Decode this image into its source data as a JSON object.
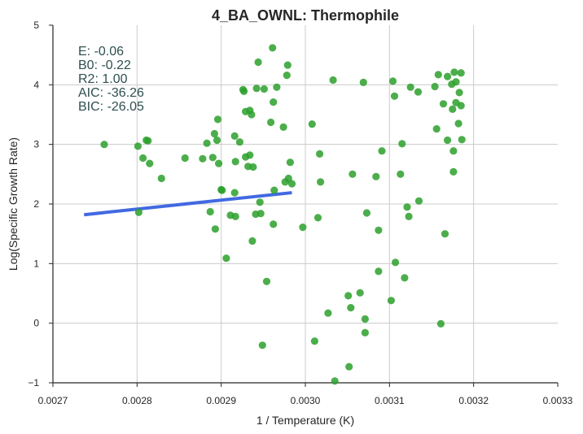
{
  "chart_data": {
    "type": "scatter",
    "title": "4_BA_OWNL: Thermophile",
    "xlabel": "1 / Temperature (K)",
    "ylabel": "Log(Specific Growth Rate)",
    "xlim": [
      0.0027,
      0.0033
    ],
    "ylim": [
      -1,
      5
    ],
    "xticks": [
      0.0027,
      0.0028,
      0.0029,
      0.003,
      0.0031,
      0.0032,
      0.0033
    ],
    "xtick_labels": [
      "0.0027",
      "0.0028",
      "0.0029",
      "0.0030",
      "0.0031",
      "0.0032",
      "0.0033"
    ],
    "yticks": [
      -1,
      0,
      1,
      2,
      3,
      4,
      5
    ],
    "ytick_labels": [
      "−1",
      "0",
      "1",
      "2",
      "3",
      "4",
      "5"
    ],
    "grid": true,
    "point_color": "#2ca02c",
    "line_color": "#4169e1",
    "stats": [
      "E:  -0.06",
      "B0:  -0.22",
      "R2:  1.00",
      "AIC: -36.26",
      "BIC: -26.05"
    ],
    "fit_line": {
      "x": [
        0.002737,
        0.002984
      ],
      "y": [
        1.82,
        2.19
      ]
    },
    "points": [
      {
        "x": 0.002761,
        "y": 3.0
      },
      {
        "x": 0.002801,
        "y": 2.97
      },
      {
        "x": 0.002802,
        "y": 1.86
      },
      {
        "x": 0.002807,
        "y": 2.77
      },
      {
        "x": 0.002811,
        "y": 3.07
      },
      {
        "x": 0.002813,
        "y": 3.06
      },
      {
        "x": 0.002815,
        "y": 2.68
      },
      {
        "x": 0.002829,
        "y": 2.43
      },
      {
        "x": 0.002857,
        "y": 2.77
      },
      {
        "x": 0.002878,
        "y": 2.76
      },
      {
        "x": 0.002883,
        "y": 3.02
      },
      {
        "x": 0.002887,
        "y": 1.87
      },
      {
        "x": 0.00289,
        "y": 2.78
      },
      {
        "x": 0.002892,
        "y": 3.18
      },
      {
        "x": 0.002893,
        "y": 1.58
      },
      {
        "x": 0.002895,
        "y": 3.07
      },
      {
        "x": 0.002896,
        "y": 3.42
      },
      {
        "x": 0.002897,
        "y": 2.68
      },
      {
        "x": 0.0029,
        "y": 2.24
      },
      {
        "x": 0.002901,
        "y": 2.23
      },
      {
        "x": 0.002906,
        "y": 1.09
      },
      {
        "x": 0.002911,
        "y": 1.81
      },
      {
        "x": 0.002916,
        "y": 2.19
      },
      {
        "x": 0.002916,
        "y": 3.14
      },
      {
        "x": 0.002917,
        "y": 1.79
      },
      {
        "x": 0.002917,
        "y": 2.71
      },
      {
        "x": 0.002922,
        "y": 3.04
      },
      {
        "x": 0.002926,
        "y": 3.92
      },
      {
        "x": 0.002927,
        "y": 3.89
      },
      {
        "x": 0.002929,
        "y": 2.79
      },
      {
        "x": 0.002929,
        "y": 3.55
      },
      {
        "x": 0.002932,
        "y": 2.63
      },
      {
        "x": 0.002934,
        "y": 2.82
      },
      {
        "x": 0.002934,
        "y": 3.57
      },
      {
        "x": 0.002936,
        "y": 3.5
      },
      {
        "x": 0.002937,
        "y": 1.38
      },
      {
        "x": 0.002938,
        "y": 2.62
      },
      {
        "x": 0.002941,
        "y": 1.83
      },
      {
        "x": 0.002942,
        "y": 3.94
      },
      {
        "x": 0.002944,
        "y": 4.38
      },
      {
        "x": 0.002946,
        "y": 2.03
      },
      {
        "x": 0.002947,
        "y": 1.84
      },
      {
        "x": 0.002949,
        "y": -0.37
      },
      {
        "x": 0.002951,
        "y": 3.93
      },
      {
        "x": 0.002954,
        "y": 0.7
      },
      {
        "x": 0.002959,
        "y": 3.37
      },
      {
        "x": 0.002961,
        "y": 4.62
      },
      {
        "x": 0.002962,
        "y": 1.66
      },
      {
        "x": 0.002962,
        "y": 3.71
      },
      {
        "x": 0.002963,
        "y": 2.23
      },
      {
        "x": 0.002966,
        "y": 3.96
      },
      {
        "x": 0.002974,
        "y": 3.29
      },
      {
        "x": 0.002976,
        "y": 2.37
      },
      {
        "x": 0.002978,
        "y": 4.16
      },
      {
        "x": 0.002979,
        "y": 4.33
      },
      {
        "x": 0.00298,
        "y": 2.43
      },
      {
        "x": 0.002982,
        "y": 2.7
      },
      {
        "x": 0.002984,
        "y": 2.34
      },
      {
        "x": 0.002997,
        "y": 1.61
      },
      {
        "x": 0.003008,
        "y": 3.34
      },
      {
        "x": 0.003011,
        "y": -0.3
      },
      {
        "x": 0.003015,
        "y": 1.77
      },
      {
        "x": 0.003017,
        "y": 2.84
      },
      {
        "x": 0.003018,
        "y": 2.37
      },
      {
        "x": 0.003027,
        "y": 0.17
      },
      {
        "x": 0.003033,
        "y": 4.08
      },
      {
        "x": 0.003035,
        "y": -0.97
      },
      {
        "x": 0.003051,
        "y": 0.46
      },
      {
        "x": 0.003052,
        "y": -0.73
      },
      {
        "x": 0.003054,
        "y": 0.26
      },
      {
        "x": 0.003056,
        "y": 2.5
      },
      {
        "x": 0.003065,
        "y": 0.51
      },
      {
        "x": 0.003069,
        "y": 4.04
      },
      {
        "x": 0.003071,
        "y": 0.07
      },
      {
        "x": 0.003071,
        "y": -0.16
      },
      {
        "x": 0.003073,
        "y": 1.85
      },
      {
        "x": 0.003084,
        "y": 2.46
      },
      {
        "x": 0.003087,
        "y": 0.87
      },
      {
        "x": 0.003087,
        "y": 1.56
      },
      {
        "x": 0.003091,
        "y": 2.89
      },
      {
        "x": 0.003102,
        "y": 0.38
      },
      {
        "x": 0.003104,
        "y": 4.06
      },
      {
        "x": 0.003106,
        "y": 3.81
      },
      {
        "x": 0.003107,
        "y": 1.02
      },
      {
        "x": 0.003113,
        "y": 2.5
      },
      {
        "x": 0.003115,
        "y": 3.01
      },
      {
        "x": 0.003118,
        "y": 0.76
      },
      {
        "x": 0.003121,
        "y": 1.95
      },
      {
        "x": 0.003123,
        "y": 1.79
      },
      {
        "x": 0.003125,
        "y": 3.96
      },
      {
        "x": 0.003134,
        "y": 3.88
      },
      {
        "x": 0.003135,
        "y": 2.05
      },
      {
        "x": 0.003154,
        "y": 3.97
      },
      {
        "x": 0.003156,
        "y": 3.26
      },
      {
        "x": 0.003158,
        "y": 4.17
      },
      {
        "x": 0.003161,
        "y": -0.01
      },
      {
        "x": 0.003164,
        "y": 3.68
      },
      {
        "x": 0.003166,
        "y": 1.5
      },
      {
        "x": 0.003169,
        "y": 3.07
      },
      {
        "x": 0.003169,
        "y": 4.14
      },
      {
        "x": 0.003174,
        "y": 4.01
      },
      {
        "x": 0.003175,
        "y": 3.59
      },
      {
        "x": 0.003176,
        "y": 2.89
      },
      {
        "x": 0.003176,
        "y": 2.54
      },
      {
        "x": 0.003177,
        "y": 4.21
      },
      {
        "x": 0.003179,
        "y": 4.05
      },
      {
        "x": 0.003179,
        "y": 3.7
      },
      {
        "x": 0.003182,
        "y": 3.35
      },
      {
        "x": 0.003183,
        "y": 3.87
      },
      {
        "x": 0.003185,
        "y": 4.2
      },
      {
        "x": 0.003185,
        "y": 3.65
      },
      {
        "x": 0.003186,
        "y": 3.08
      }
    ]
  }
}
